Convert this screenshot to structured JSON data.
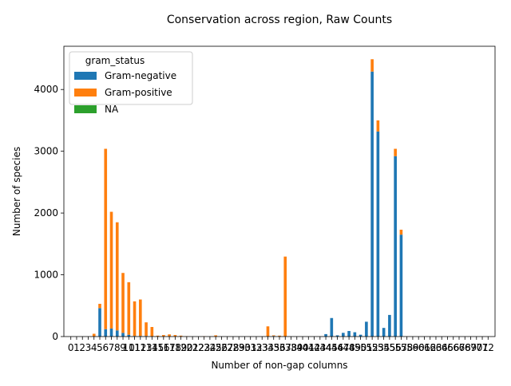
{
  "chart_data": {
    "type": "bar",
    "stacked": true,
    "title": "Conservation across region, Raw Counts",
    "xlabel": "Number of non-gap columns",
    "ylabel": "Number of species",
    "ylim": [
      0,
      4700
    ],
    "yticks": [
      0,
      1000,
      2000,
      3000,
      4000
    ],
    "categories": [
      "0",
      "1",
      "2",
      "3",
      "4",
      "5",
      "6",
      "7",
      "8",
      "9",
      "10",
      "11",
      "12",
      "13",
      "14",
      "15",
      "16",
      "17",
      "18",
      "19",
      "20",
      "21",
      "22",
      "23",
      "24",
      "25",
      "26",
      "27",
      "28",
      "29",
      "30",
      "31",
      "32",
      "33",
      "34",
      "35",
      "36",
      "37",
      "38",
      "39",
      "40",
      "41",
      "42",
      "43",
      "44",
      "45",
      "46",
      "47",
      "48",
      "49",
      "50",
      "51",
      "52",
      "53",
      "54",
      "55",
      "56",
      "57",
      "58",
      "59",
      "60",
      "61",
      "62",
      "63",
      "64",
      "65",
      "66",
      "67",
      "68",
      "69",
      "70",
      "71",
      "72"
    ],
    "legend": {
      "title": "gram_status",
      "position": "upper-left"
    },
    "series": [
      {
        "name": "Gram-negative",
        "color": "#1f77b4",
        "values": [
          0,
          0,
          0,
          0,
          5,
          460,
          120,
          130,
          100,
          60,
          30,
          10,
          10,
          10,
          5,
          5,
          5,
          5,
          5,
          5,
          0,
          0,
          0,
          0,
          0,
          0,
          0,
          0,
          0,
          0,
          0,
          0,
          0,
          0,
          5,
          10,
          5,
          5,
          0,
          0,
          0,
          0,
          0,
          0,
          40,
          300,
          20,
          60,
          90,
          70,
          30,
          240,
          4290,
          3320,
          140,
          350,
          2920,
          1650,
          0,
          0,
          0,
          0,
          0,
          0,
          0,
          0,
          0,
          0,
          0,
          0,
          0,
          0,
          0
        ]
      },
      {
        "name": "Gram-positive",
        "color": "#ff7f0e",
        "values": [
          0,
          0,
          0,
          0,
          40,
          70,
          2920,
          1890,
          1750,
          970,
          850,
          560,
          590,
          220,
          150,
          10,
          20,
          30,
          20,
          10,
          5,
          0,
          0,
          5,
          0,
          20,
          0,
          0,
          0,
          0,
          0,
          0,
          0,
          0,
          160,
          10,
          10,
          1290,
          0,
          0,
          0,
          0,
          0,
          0,
          0,
          0,
          0,
          0,
          0,
          0,
          0,
          0,
          200,
          180,
          0,
          0,
          120,
          80,
          0,
          0,
          0,
          0,
          0,
          0,
          0,
          0,
          0,
          0,
          0,
          0,
          0,
          0,
          0
        ]
      },
      {
        "name": "NA",
        "color": "#2ca02c",
        "values": [
          0,
          0,
          0,
          0,
          0,
          0,
          0,
          0,
          0,
          0,
          0,
          0,
          0,
          0,
          0,
          0,
          0,
          0,
          0,
          0,
          0,
          0,
          0,
          0,
          0,
          0,
          0,
          0,
          0,
          0,
          0,
          0,
          0,
          0,
          0,
          0,
          0,
          0,
          0,
          0,
          0,
          0,
          0,
          0,
          0,
          0,
          0,
          0,
          0,
          0,
          0,
          0,
          0,
          0,
          0,
          0,
          0,
          0,
          0,
          0,
          0,
          0,
          0,
          0,
          0,
          0,
          0,
          0,
          0,
          0,
          0,
          0,
          0
        ]
      }
    ]
  }
}
